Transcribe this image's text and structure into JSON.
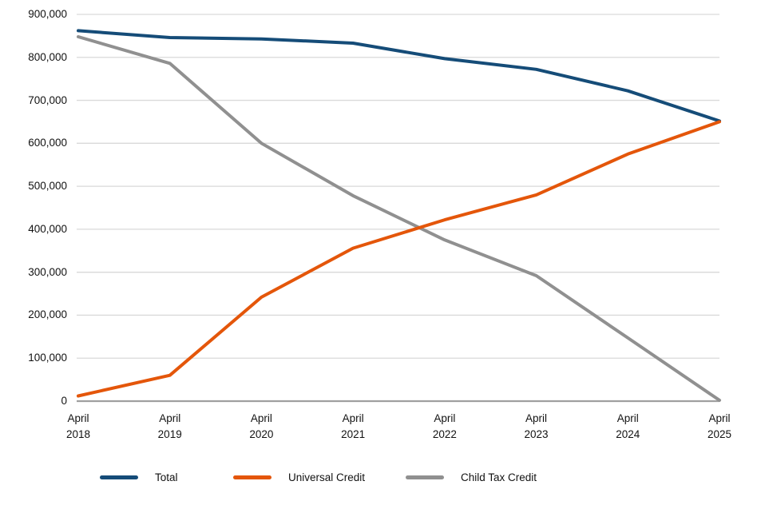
{
  "chart_data": {
    "type": "line",
    "title": "",
    "x_categories": [
      {
        "month": "April",
        "year": "2018"
      },
      {
        "month": "April",
        "year": "2019"
      },
      {
        "month": "April",
        "year": "2020"
      },
      {
        "month": "April",
        "year": "2021"
      },
      {
        "month": "April",
        "year": "2022"
      },
      {
        "month": "April",
        "year": "2023"
      },
      {
        "month": "April",
        "year": "2024"
      },
      {
        "month": "April",
        "year": "2025"
      }
    ],
    "y_axis": {
      "min": 0,
      "max": 900000,
      "step": 100000,
      "tick_labels": [
        "0",
        "100,000",
        "200,000",
        "300,000",
        "400,000",
        "500,000",
        "600,000",
        "700,000",
        "800,000",
        "900,000"
      ]
    },
    "series": [
      {
        "name": "Total",
        "color": "#154C78",
        "values": [
          862000,
          846000,
          843000,
          833000,
          797000,
          772000,
          722000,
          652000
        ]
      },
      {
        "name": "Universal Credit",
        "color": "#E4560A",
        "values": [
          12000,
          60000,
          242000,
          356000,
          422000,
          480000,
          575000,
          650000
        ]
      },
      {
        "name": "Child Tax Credit",
        "color": "#909090",
        "values": [
          848000,
          786000,
          600000,
          478000,
          375000,
          292000,
          147000,
          2000
        ]
      }
    ],
    "draw_order": [
      "Child Tax Credit",
      "Total",
      "Universal Credit"
    ],
    "grid": "horizontal",
    "legend_position": "bottom",
    "style": {
      "gridline_color": "#D9D9D9",
      "axis_line_color": "#A0A0A0",
      "text_color": "#121212",
      "line_width": 4
    }
  }
}
